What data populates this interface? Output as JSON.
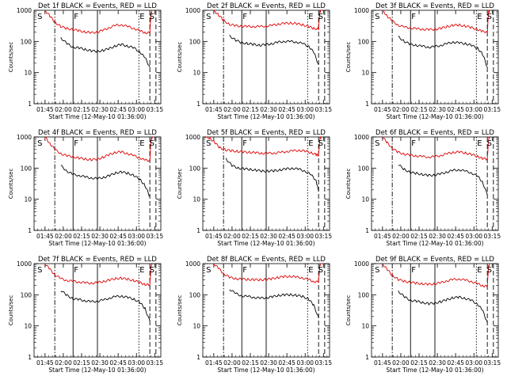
{
  "colors": {
    "events": "#000000",
    "lld": "#e00000",
    "axis": "#000000",
    "background": "#ffffff"
  },
  "ylabel": "Counts/sec",
  "xlabel": "Start Time (12-May-10 01:36:00)",
  "x_ticks": [
    "01:45",
    "02:00",
    "02:15",
    "02:30",
    "02:45",
    "03:00",
    "03:15"
  ],
  "y_ticks": [
    "1",
    "10",
    "100",
    "1000"
  ],
  "chart_data": [
    {
      "type": "line",
      "title": "Det 1f BLACK = Events, RED = LLD",
      "xlabel": "Start Time (12-May-10 01:36:00)",
      "ylabel": "Counts/sec",
      "x_units": "minutes since 01:36:00",
      "xlim": [
        0,
        104
      ],
      "ylim": [
        1,
        1000
      ],
      "y_scale": "log",
      "markers": [
        {
          "label": "S",
          "x": 2
        },
        {
          "label": "F",
          "x": 32
        },
        {
          "label": "E",
          "x": 86
        },
        {
          "label": "S",
          "x": 94
        }
      ],
      "vlines": {
        "dashdot": [
          17
        ],
        "solid": [
          32,
          52
        ],
        "dotted": [
          86
        ],
        "dashed": [
          95,
          100
        ]
      },
      "x": [
        9,
        13,
        17,
        22,
        27,
        32,
        37,
        42,
        47,
        52,
        57,
        62,
        67,
        72,
        77,
        82,
        87,
        91,
        95,
        96,
        97
      ],
      "series": [
        {
          "name": "BLACK = Events",
          "values": [
            null,
            null,
            null,
            130,
            85,
            65,
            62,
            55,
            50,
            48,
            52,
            60,
            72,
            80,
            70,
            62,
            45,
            30,
            15,
            null,
            null
          ]
        },
        {
          "name": "RED = LLD",
          "values": [
            1000,
            650,
            420,
            300,
            260,
            240,
            220,
            200,
            190,
            200,
            230,
            280,
            330,
            340,
            300,
            260,
            220,
            190,
            190,
            800,
            1000
          ]
        }
      ]
    },
    {
      "type": "line",
      "title": "Det 2f BLACK = Events, RED = LLD",
      "xlabel": "Start Time (12-May-10 01:36:00)",
      "ylabel": "Counts/sec",
      "x_units": "minutes since 01:36:00",
      "xlim": [
        0,
        104
      ],
      "ylim": [
        1,
        1000
      ],
      "y_scale": "log",
      "markers": [
        {
          "label": "S",
          "x": 2
        },
        {
          "label": "F",
          "x": 32
        },
        {
          "label": "E",
          "x": 86
        },
        {
          "label": "S",
          "x": 94
        }
      ],
      "vlines": {
        "dashdot": [
          17
        ],
        "solid": [
          32,
          52
        ],
        "dotted": [
          86
        ],
        "dashed": [
          95,
          100
        ]
      },
      "x": [
        9,
        13,
        17,
        22,
        27,
        32,
        37,
        42,
        47,
        52,
        57,
        62,
        67,
        72,
        77,
        82,
        87,
        91,
        95,
        96,
        97
      ],
      "series": [
        {
          "name": "BLACK = Events",
          "values": [
            null,
            null,
            null,
            150,
            110,
            90,
            85,
            80,
            75,
            80,
            85,
            95,
            100,
            100,
            95,
            85,
            70,
            45,
            18,
            null,
            null
          ]
        },
        {
          "name": "RED = LLD",
          "values": [
            1000,
            700,
            480,
            350,
            320,
            310,
            300,
            300,
            300,
            310,
            330,
            360,
            380,
            390,
            370,
            340,
            300,
            260,
            250,
            900,
            1000
          ]
        }
      ]
    },
    {
      "type": "line",
      "title": "Det 3f BLACK = Events, RED = LLD",
      "xlabel": "Start Time (12-May-10 01:36:00)",
      "ylabel": "Counts/sec",
      "x_units": "minutes since 01:36:00",
      "xlim": [
        0,
        104
      ],
      "ylim": [
        1,
        1000
      ],
      "y_scale": "log",
      "markers": [
        {
          "label": "S",
          "x": 2
        },
        {
          "label": "F",
          "x": 32
        },
        {
          "label": "E",
          "x": 86
        },
        {
          "label": "S",
          "x": 94
        }
      ],
      "vlines": {
        "dashdot": [
          17
        ],
        "solid": [
          32,
          52
        ],
        "dotted": [
          86
        ],
        "dashed": [
          95,
          100
        ]
      },
      "x": [
        9,
        13,
        17,
        22,
        27,
        32,
        37,
        42,
        47,
        52,
        57,
        62,
        67,
        72,
        77,
        82,
        87,
        91,
        95,
        96,
        97
      ],
      "series": [
        {
          "name": "BLACK = Events",
          "values": [
            null,
            null,
            null,
            140,
            100,
            80,
            75,
            70,
            65,
            68,
            75,
            85,
            95,
            90,
            85,
            75,
            60,
            40,
            15,
            null,
            null
          ]
        },
        {
          "name": "RED = LLD",
          "values": [
            1000,
            650,
            450,
            330,
            290,
            270,
            255,
            245,
            240,
            245,
            265,
            300,
            330,
            335,
            310,
            280,
            240,
            210,
            200,
            850,
            1000
          ]
        }
      ]
    },
    {
      "type": "line",
      "title": "Det 4f BLACK = Events, RED = LLD",
      "xlabel": "Start Time (12-May-10 01:36:00)",
      "ylabel": "Counts/sec",
      "x_units": "minutes since 01:36:00",
      "xlim": [
        0,
        104
      ],
      "ylim": [
        1,
        1000
      ],
      "y_scale": "log",
      "markers": [
        {
          "label": "S",
          "x": 2
        },
        {
          "label": "F",
          "x": 32
        },
        {
          "label": "E",
          "x": 86
        },
        {
          "label": "S",
          "x": 94
        }
      ],
      "vlines": {
        "dashdot": [
          17
        ],
        "solid": [
          32,
          52
        ],
        "dotted": [
          86
        ],
        "dashed": [
          95,
          100
        ]
      },
      "x": [
        9,
        13,
        17,
        22,
        27,
        32,
        37,
        42,
        47,
        52,
        57,
        62,
        67,
        72,
        77,
        82,
        87,
        91,
        95,
        96,
        97
      ],
      "series": [
        {
          "name": "BLACK = Events",
          "values": [
            null,
            null,
            null,
            120,
            80,
            62,
            58,
            52,
            48,
            46,
            50,
            58,
            70,
            75,
            68,
            58,
            42,
            28,
            12,
            null,
            null
          ]
        },
        {
          "name": "RED = LLD",
          "values": [
            1000,
            620,
            400,
            290,
            250,
            230,
            210,
            195,
            185,
            195,
            225,
            275,
            320,
            330,
            290,
            250,
            210,
            180,
            175,
            800,
            1000
          ]
        }
      ]
    },
    {
      "type": "line",
      "title": "Det 5f BLACK = Events, RED = LLD",
      "xlabel": "Start Time (12-May-10 01:36:00)",
      "ylabel": "Counts/sec",
      "x_units": "minutes since 01:36:00",
      "xlim": [
        0,
        104
      ],
      "ylim": [
        1,
        1000
      ],
      "y_scale": "log",
      "markers": [
        {
          "label": "S",
          "x": 2
        },
        {
          "label": "F",
          "x": 32
        },
        {
          "label": "E",
          "x": 86
        },
        {
          "label": "S",
          "x": 94
        }
      ],
      "vlines": {
        "dashdot": [
          17
        ],
        "solid": [
          32,
          52
        ],
        "dotted": [
          86
        ],
        "dashed": [
          95,
          100
        ]
      },
      "x": [
        2,
        6,
        10,
        14,
        19,
        24,
        29,
        34,
        39,
        44,
        49,
        54,
        59,
        64,
        69,
        74,
        79,
        84,
        89,
        93,
        95,
        96,
        97
      ],
      "series": [
        {
          "name": "BLACK = Events",
          "values": [
            null,
            null,
            null,
            null,
            200,
            120,
            100,
            95,
            90,
            85,
            80,
            80,
            82,
            88,
            95,
            98,
            92,
            80,
            60,
            40,
            18,
            null,
            null
          ]
        },
        {
          "name": "RED = LLD",
          "values": [
            1000,
            900,
            650,
            450,
            380,
            360,
            340,
            330,
            320,
            310,
            300,
            300,
            305,
            320,
            340,
            360,
            370,
            350,
            310,
            270,
            260,
            850,
            1000
          ]
        }
      ]
    },
    {
      "type": "line",
      "title": "Det 6f BLACK = Events, RED = LLD",
      "xlabel": "Start Time (12-May-10 01:36:00)",
      "ylabel": "Counts/sec",
      "x_units": "minutes since 01:36:00",
      "xlim": [
        0,
        104
      ],
      "ylim": [
        1,
        1000
      ],
      "y_scale": "log",
      "markers": [
        {
          "label": "S",
          "x": 2
        },
        {
          "label": "F",
          "x": 32
        },
        {
          "label": "E",
          "x": 86
        },
        {
          "label": "S",
          "x": 94
        }
      ],
      "vlines": {
        "dashdot": [
          17
        ],
        "solid": [
          32,
          52
        ],
        "dotted": [
          86
        ],
        "dashed": [
          95,
          100
        ]
      },
      "x": [
        9,
        13,
        17,
        22,
        27,
        32,
        37,
        42,
        47,
        52,
        57,
        62,
        67,
        72,
        77,
        82,
        87,
        91,
        95,
        96,
        97
      ],
      "series": [
        {
          "name": "BLACK = Events",
          "values": [
            null,
            null,
            null,
            130,
            90,
            72,
            68,
            62,
            58,
            60,
            66,
            75,
            85,
            88,
            80,
            70,
            55,
            36,
            14,
            null,
            null
          ]
        },
        {
          "name": "RED = LLD",
          "values": [
            1000,
            650,
            430,
            320,
            280,
            260,
            245,
            235,
            225,
            235,
            255,
            290,
            320,
            330,
            305,
            275,
            235,
            205,
            195,
            850,
            1000
          ]
        }
      ]
    },
    {
      "type": "line",
      "title": "Det 7f BLACK = Events, RED = LLD",
      "xlabel": "Start Time (12-May-10 01:36:00)",
      "ylabel": "Counts/sec",
      "x_units": "minutes since 01:36:00",
      "xlim": [
        0,
        104
      ],
      "ylim": [
        1,
        1000
      ],
      "y_scale": "log",
      "markers": [
        {
          "label": "S",
          "x": 2
        },
        {
          "label": "F",
          "x": 32
        },
        {
          "label": "E",
          "x": 86
        },
        {
          "label": "S",
          "x": 94
        }
      ],
      "vlines": {
        "dashdot": [
          17
        ],
        "solid": [
          32,
          52
        ],
        "dotted": [
          86
        ],
        "dashed": [
          95,
          100
        ]
      },
      "x": [
        9,
        13,
        17,
        22,
        27,
        32,
        37,
        42,
        47,
        52,
        57,
        62,
        67,
        72,
        77,
        82,
        87,
        91,
        95,
        96,
        97
      ],
      "series": [
        {
          "name": "BLACK = Events",
          "values": [
            null,
            null,
            null,
            140,
            95,
            75,
            70,
            64,
            60,
            62,
            68,
            78,
            88,
            90,
            82,
            72,
            56,
            36,
            14,
            null,
            null
          ]
        },
        {
          "name": "RED = LLD",
          "values": [
            1000,
            660,
            440,
            330,
            290,
            270,
            255,
            245,
            235,
            245,
            265,
            300,
            330,
            340,
            315,
            285,
            245,
            215,
            205,
            850,
            1000
          ]
        }
      ]
    },
    {
      "type": "line",
      "title": "Det 8f BLACK = Events, RED = LLD",
      "xlabel": "Start Time (12-May-10 01:36:00)",
      "ylabel": "Counts/sec",
      "x_units": "minutes since 01:36:00",
      "xlim": [
        0,
        104
      ],
      "ylim": [
        1,
        1000
      ],
      "y_scale": "log",
      "markers": [
        {
          "label": "S",
          "x": 2
        },
        {
          "label": "F",
          "x": 32
        },
        {
          "label": "E",
          "x": 86
        },
        {
          "label": "S",
          "x": 94
        }
      ],
      "vlines": {
        "dashdot": [
          17
        ],
        "solid": [
          32,
          52
        ],
        "dotted": [
          86
        ],
        "dashed": [
          95,
          100
        ]
      },
      "x": [
        9,
        13,
        17,
        22,
        27,
        32,
        37,
        42,
        47,
        52,
        57,
        62,
        67,
        72,
        77,
        82,
        87,
        91,
        95,
        96,
        97
      ],
      "series": [
        {
          "name": "BLACK = Events",
          "values": [
            null,
            null,
            null,
            150,
            110,
            92,
            88,
            82,
            78,
            80,
            86,
            95,
            100,
            100,
            95,
            88,
            72,
            46,
            18,
            null,
            null
          ]
        },
        {
          "name": "RED = LLD",
          "values": [
            1000,
            700,
            480,
            360,
            330,
            320,
            310,
            305,
            300,
            310,
            330,
            360,
            385,
            390,
            370,
            345,
            305,
            265,
            255,
            900,
            1000
          ]
        }
      ]
    },
    {
      "type": "line",
      "title": "Det 9f BLACK = Events, RED = LLD",
      "xlabel": "Start Time (12-May-10 01:36:00)",
      "ylabel": "Counts/sec",
      "x_units": "minutes since 01:36:00",
      "xlim": [
        0,
        104
      ],
      "ylim": [
        1,
        1000
      ],
      "y_scale": "log",
      "markers": [
        {
          "label": "S",
          "x": 2
        },
        {
          "label": "F",
          "x": 32
        },
        {
          "label": "E",
          "x": 86
        },
        {
          "label": "S",
          "x": 94
        }
      ],
      "vlines": {
        "dashdot": [
          17
        ],
        "solid": [
          32,
          52
        ],
        "dotted": [
          86
        ],
        "dashed": [
          95,
          100
        ]
      },
      "x": [
        9,
        13,
        17,
        22,
        27,
        32,
        37,
        42,
        47,
        52,
        57,
        62,
        67,
        72,
        77,
        82,
        87,
        91,
        95,
        96,
        97
      ],
      "series": [
        {
          "name": "BLACK = Events",
          "values": [
            null,
            null,
            null,
            130,
            85,
            66,
            62,
            56,
            52,
            54,
            60,
            70,
            80,
            84,
            76,
            66,
            50,
            32,
            13,
            null,
            null
          ]
        },
        {
          "name": "RED = LLD",
          "values": [
            1000,
            640,
            420,
            310,
            270,
            250,
            235,
            225,
            215,
            225,
            245,
            280,
            310,
            320,
            295,
            265,
            225,
            195,
            185,
            820,
            1000
          ]
        }
      ]
    }
  ]
}
